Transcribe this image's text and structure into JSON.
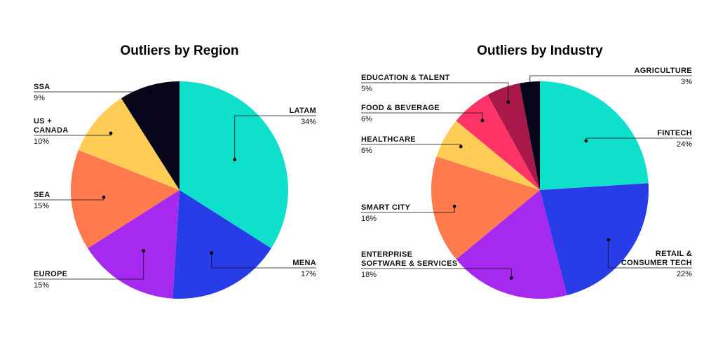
{
  "chart_data": [
    {
      "type": "pie",
      "title": "Outliers by Region",
      "slices": [
        {
          "label": [
            "LATAM"
          ],
          "value": 34,
          "value_label": "34%",
          "color": "#0fe0cc"
        },
        {
          "label": [
            "MENA"
          ],
          "value": 17,
          "value_label": "17%",
          "color": "#283de8"
        },
        {
          "label": [
            "EUROPE"
          ],
          "value": 15,
          "value_label": "15%",
          "color": "#a629ef"
        },
        {
          "label": [
            "SEA"
          ],
          "value": 15,
          "value_label": "15%",
          "color": "#ff7a4d"
        },
        {
          "label": [
            "US +",
            "CANADA"
          ],
          "value": 10,
          "value_label": "10%",
          "color": "#ffcc55"
        },
        {
          "label": [
            "SSA"
          ],
          "value": 9,
          "value_label": "9%",
          "color": "#07061b"
        }
      ]
    },
    {
      "type": "pie",
      "title": "Outliers by Industry",
      "slices": [
        {
          "label": [
            "FINTECH"
          ],
          "value": 24,
          "value_label": "24%",
          "color": "#0fe0cc"
        },
        {
          "label": [
            "RETAIL &",
            "CONSUMER TECH"
          ],
          "value": 22,
          "value_label": "22%",
          "color": "#283de8"
        },
        {
          "label": [
            "ENTERPRISE",
            "SOFTWARE & SERVICES"
          ],
          "value": 18,
          "value_label": "18%",
          "color": "#a629ef"
        },
        {
          "label": [
            "SMART CITY"
          ],
          "value": 16,
          "value_label": "16%",
          "color": "#ff7a4d"
        },
        {
          "label": [
            "HEALTHCARE"
          ],
          "value": 6,
          "value_label": "6%",
          "color": "#ffcc55"
        },
        {
          "label": [
            "FOOD & BEVERAGE"
          ],
          "value": 6,
          "value_label": "6%",
          "color": "#ff3366"
        },
        {
          "label": [
            "EDUCATION & TALENT"
          ],
          "value": 5,
          "value_label": "5%",
          "color": "#a8184a"
        },
        {
          "label": [
            "AGRICULTURE"
          ],
          "value": 3,
          "value_label": "3%",
          "color": "#07061b"
        }
      ]
    }
  ]
}
